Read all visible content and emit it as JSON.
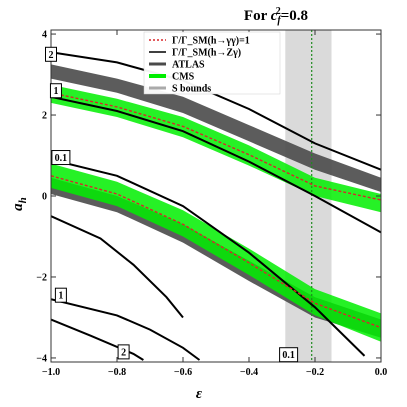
{
  "chart_data": {
    "type": "line",
    "title_prefix": "For ",
    "title_var": "c",
    "title_sub": "f",
    "title_sup": "2",
    "title_suffix": "=0.8",
    "xlabel": "ε",
    "ylabel": "a",
    "ylabel_sub": "h",
    "xlim": [
      -1.0,
      0.0
    ],
    "ylim": [
      -4.1,
      4.1
    ],
    "x_ticks": [
      {
        "v": -1.0,
        "label": "−1.0"
      },
      {
        "v": -0.8,
        "label": "−0.8"
      },
      {
        "v": -0.6,
        "label": "−0.6"
      },
      {
        "v": -0.4,
        "label": "−0.4"
      },
      {
        "v": -0.2,
        "label": "−0.2"
      },
      {
        "v": 0.0,
        "label": "0.0"
      }
    ],
    "y_ticks": [
      {
        "v": -4,
        "label": "−4"
      },
      {
        "v": -2,
        "label": "−2"
      },
      {
        "v": 0,
        "label": "0"
      },
      {
        "v": 2,
        "label": "2"
      },
      {
        "v": 4,
        "label": "4"
      }
    ],
    "legend": [
      {
        "label": "Γ/Γ_SM(h→γγ)=1",
        "style": "dashed-red"
      },
      {
        "label": "Γ/Γ_SM(h→Zγ)",
        "style": "solid-black"
      },
      {
        "label": "ATLAS",
        "style": "gray"
      },
      {
        "label": "CMS",
        "style": "green"
      },
      {
        "label": "S bounds",
        "style": "lightgray"
      }
    ],
    "colors": {
      "atlas": "#4a4a4a",
      "cms": "#00ee00",
      "gamma_gamma": "#d9262a",
      "z_gamma": "#000000",
      "s_bounds": "#d3d3d3",
      "s_bounds_center": "#1f8a1f"
    },
    "s_bounds": {
      "x_min": -0.29,
      "x_max": -0.15,
      "x_center": -0.21
    },
    "upper_branch": {
      "x": [
        -1.0,
        -0.8,
        -0.6,
        -0.4,
        -0.2,
        0.0
      ],
      "atlas_low": [
        2.9,
        2.55,
        2.05,
        1.35,
        0.65,
        0.1
      ],
      "atlas_high": [
        3.25,
        2.9,
        2.45,
        1.75,
        1.05,
        0.45
      ],
      "cms_low": [
        2.3,
        1.95,
        1.45,
        0.75,
        0.0,
        -0.4
      ],
      "cms_high": [
        2.75,
        2.4,
        1.95,
        1.25,
        0.45,
        0.05
      ],
      "gamma_gamma": [
        2.55,
        2.2,
        1.72,
        1.02,
        0.25,
        -0.1
      ]
    },
    "lower_branch": {
      "x": [
        -1.0,
        -0.8,
        -0.6,
        -0.4,
        -0.2,
        0.0
      ],
      "atlas_low": [
        0.05,
        -0.4,
        -1.15,
        -2.1,
        -3.0,
        -3.5
      ],
      "atlas_high": [
        0.45,
        0.0,
        -0.7,
        -1.6,
        -2.5,
        -3.05
      ],
      "cms_low": [
        0.2,
        -0.25,
        -1.0,
        -1.95,
        -2.95,
        -3.6
      ],
      "cms_high": [
        0.8,
        0.35,
        -0.35,
        -1.3,
        -2.3,
        -2.9
      ],
      "gamma_gamma": [
        0.5,
        0.05,
        -0.7,
        -1.65,
        -2.65,
        -3.25
      ]
    },
    "z_gamma_contours": [
      {
        "label": "2",
        "label_at": [
          -1.0,
          3.5
        ],
        "x": [
          -1.0,
          -0.8,
          -0.6,
          -0.4,
          -0.2,
          0.0
        ],
        "y": [
          3.55,
          3.3,
          2.85,
          2.15,
          1.3,
          0.65
        ]
      },
      {
        "label": "1",
        "label_at": [
          -0.985,
          2.6
        ],
        "x": [
          -1.0,
          -0.8,
          -0.6,
          -0.4,
          -0.2,
          0.0
        ],
        "y": [
          2.45,
          2.1,
          1.6,
          0.85,
          0.0,
          -0.9
        ]
      },
      {
        "label": "0.1",
        "label_at": [
          -0.97,
          0.95
        ],
        "x": [
          -1.0,
          -0.8,
          -0.6,
          -0.4,
          -0.2,
          -0.05
        ],
        "y": [
          0.9,
          0.5,
          -0.25,
          -1.4,
          -2.75,
          -3.95
        ]
      },
      {
        "label": "1",
        "label_at": [
          -0.97,
          -2.45
        ],
        "x": [
          -1.0,
          -0.8,
          -0.7,
          -0.6,
          -0.55
        ],
        "y": [
          -2.55,
          -2.95,
          -3.3,
          -3.75,
          -4.05
        ]
      },
      {
        "label": "2",
        "label_at": [
          -0.78,
          -3.85
        ],
        "x": [
          -1.0,
          -0.85,
          -0.75,
          -0.65,
          -0.6
        ],
        "y": [
          -0.5,
          -1.05,
          -1.7,
          -2.5,
          -3.0
        ]
      },
      {
        "label": "0.1",
        "label_at": [
          -0.28,
          -3.92
        ],
        "x": [
          -1.0,
          -0.88,
          -0.75,
          -0.72
        ],
        "y": [
          -3.05,
          -3.45,
          -3.9,
          -4.05
        ]
      }
    ]
  }
}
